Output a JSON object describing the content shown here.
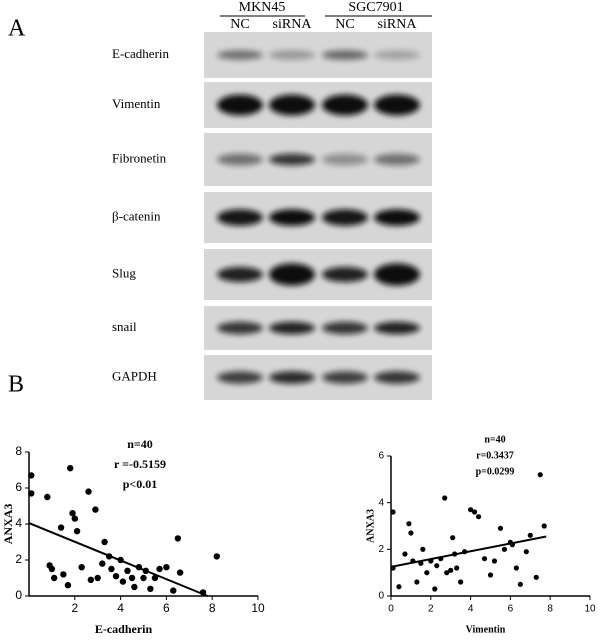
{
  "blot": {
    "panel": "A",
    "groups": [
      "MKN45",
      "SGC7901"
    ],
    "lanes": [
      "NC",
      "siRNA",
      "NC",
      "siRNA"
    ],
    "rows": [
      "E-cadherin",
      "Vimentin",
      "Fibronetin",
      "β-catenin",
      "Slug",
      "snail",
      "GAPDH"
    ]
  },
  "panel_b": "B",
  "chart_data": [
    {
      "type": "scatter",
      "xlabel": "E-cadherin",
      "ylabel": "ANXA3",
      "annotations": [
        "n=40",
        "r =-0.5159",
        "p<0.01"
      ],
      "xlim": [
        0,
        10
      ],
      "ylim": [
        0,
        8
      ],
      "xticks": [
        2,
        4,
        6,
        8,
        10
      ],
      "yticks": [
        0,
        2,
        4,
        6,
        8
      ],
      "color": "#000000",
      "x": [
        0.1,
        0.1,
        0.8,
        1.8,
        1.9,
        2.6,
        2.0,
        2.1,
        1.4,
        2.9,
        3.3,
        1.0,
        0.9,
        1.5,
        1.7,
        2.3,
        1.1,
        2.7,
        3.0,
        3.2,
        3.6,
        3.8,
        4.0,
        4.1,
        4.3,
        4.5,
        4.6,
        4.8,
        5.0,
        5.1,
        5.3,
        5.5,
        5.7,
        6.0,
        6.3,
        6.5,
        6.6,
        7.6,
        8.2,
        3.5
      ],
      "y": [
        6.7,
        5.7,
        5.5,
        7.1,
        4.6,
        5.8,
        4.3,
        3.6,
        3.8,
        4.8,
        3.0,
        1.5,
        1.7,
        1.2,
        0.6,
        1.6,
        1.0,
        0.9,
        1.0,
        1.8,
        1.5,
        1.1,
        2.0,
        0.8,
        1.4,
        1.0,
        0.5,
        1.6,
        1.0,
        1.4,
        0.4,
        1.0,
        1.5,
        1.6,
        0.3,
        3.2,
        1.3,
        0.2,
        2.2,
        2.2
      ],
      "fit_x": [
        0,
        7.8
      ],
      "fit_y": [
        4.05,
        0
      ]
    },
    {
      "type": "scatter",
      "xlabel": "Vimentin",
      "ylabel": "ANXA3",
      "annotations": [
        "n=40",
        "r=0.3437",
        "p=0.0299"
      ],
      "xlim": [
        0,
        10
      ],
      "ylim": [
        0,
        6
      ],
      "xticks": [
        0,
        2,
        4,
        6,
        8,
        10
      ],
      "yticks": [
        0,
        2,
        4,
        6
      ],
      "color": "#000000",
      "x": [
        0.1,
        0.1,
        0.4,
        0.7,
        0.9,
        1.1,
        1.3,
        1.5,
        1.6,
        1.8,
        2.0,
        2.2,
        2.3,
        2.5,
        2.7,
        2.8,
        3.0,
        3.1,
        3.3,
        3.5,
        3.7,
        4.0,
        4.2,
        4.4,
        4.7,
        5.0,
        5.2,
        5.5,
        5.7,
        6.0,
        6.1,
        6.3,
        6.5,
        6.8,
        7.0,
        7.3,
        7.5,
        7.7,
        3.2,
        1.0
      ],
      "y": [
        3.6,
        1.2,
        0.4,
        1.8,
        3.1,
        1.5,
        0.6,
        1.4,
        2.0,
        1.0,
        1.5,
        0.3,
        1.3,
        1.6,
        4.2,
        1.0,
        1.1,
        2.5,
        1.2,
        0.6,
        1.9,
        3.7,
        3.6,
        3.4,
        1.6,
        0.9,
        1.5,
        2.9,
        2.0,
        2.3,
        2.2,
        1.2,
        0.5,
        1.9,
        2.6,
        0.8,
        5.2,
        3.0,
        1.8,
        2.7
      ],
      "fit_x": [
        0,
        7.8
      ],
      "fit_y": [
        1.25,
        2.55
      ]
    }
  ]
}
